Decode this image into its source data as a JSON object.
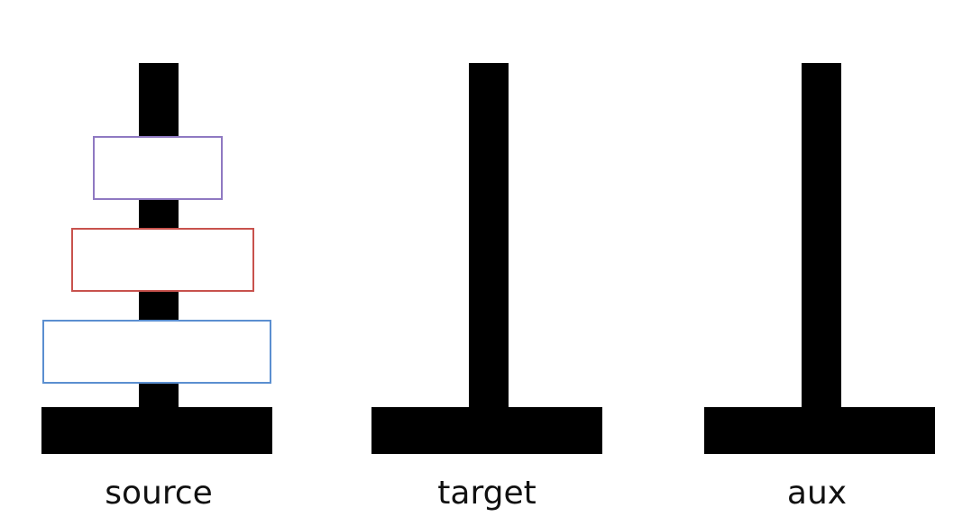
{
  "towers": [
    {
      "id": "source",
      "label": "source",
      "disks": [
        {
          "size": "small",
          "border_color": "#8f79c2"
        },
        {
          "size": "medium",
          "border_color": "#c8524d"
        },
        {
          "size": "large",
          "border_color": "#5b8fd0"
        }
      ]
    },
    {
      "id": "target",
      "label": "target",
      "disks": []
    },
    {
      "id": "aux",
      "label": "aux",
      "disks": []
    }
  ],
  "colors": {
    "peg": "#000000",
    "base": "#000000",
    "background": "#ffffff"
  }
}
